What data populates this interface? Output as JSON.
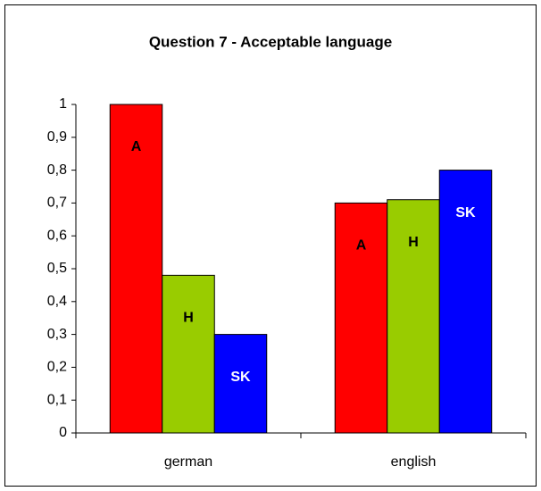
{
  "chart_data": {
    "type": "bar",
    "title": "Question 7 - Acceptable language",
    "categories": [
      "german",
      "english"
    ],
    "series": [
      {
        "name": "A",
        "color": "#ff0000",
        "label_color": "#000000",
        "values": [
          1,
          0.7
        ]
      },
      {
        "name": "H",
        "color": "#99cc00",
        "label_color": "#000000",
        "values": [
          0.48,
          0.71
        ]
      },
      {
        "name": "SK",
        "color": "#0000ff",
        "label_color": "#ffffff",
        "values": [
          0.3,
          0.8
        ]
      }
    ],
    "ylim": [
      0,
      1
    ],
    "yticks": [
      0,
      {
        "value": 0.1,
        "label": "0,1"
      },
      {
        "value": 0.2,
        "label": "0,2"
      },
      {
        "value": 0.3,
        "label": "0,3"
      },
      {
        "value": 0.4,
        "label": "0,4"
      },
      {
        "value": 0.5,
        "label": "0,5"
      },
      {
        "value": 0.6,
        "label": "0,6"
      },
      {
        "value": 0.7,
        "label": "0,7"
      },
      {
        "value": 0.8,
        "label": "0,8"
      },
      {
        "value": 0.9,
        "label": "0,9"
      },
      1
    ],
    "grid": false
  }
}
